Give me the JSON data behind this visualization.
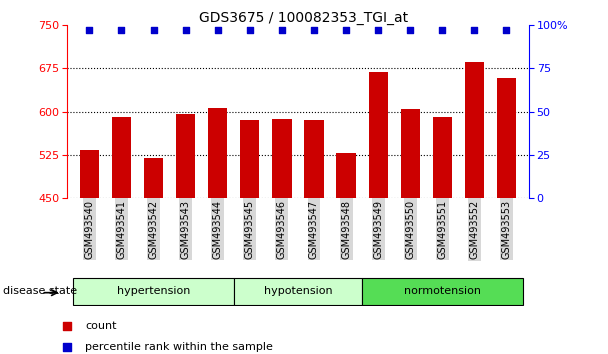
{
  "title": "GDS3675 / 100082353_TGI_at",
  "samples": [
    "GSM493540",
    "GSM493541",
    "GSM493542",
    "GSM493543",
    "GSM493544",
    "GSM493545",
    "GSM493546",
    "GSM493547",
    "GSM493548",
    "GSM493549",
    "GSM493550",
    "GSM493551",
    "GSM493552",
    "GSM493553"
  ],
  "counts": [
    533,
    590,
    520,
    596,
    606,
    585,
    587,
    585,
    528,
    668,
    604,
    590,
    686,
    658
  ],
  "percentiles": [
    97,
    97,
    97,
    97,
    97,
    97,
    97,
    97,
    97,
    97,
    97,
    97,
    97,
    97
  ],
  "groups": [
    {
      "label": "hypertension",
      "start": 0,
      "end": 5,
      "color": "#ccffcc"
    },
    {
      "label": "hypotension",
      "start": 5,
      "end": 9,
      "color": "#ccffcc"
    },
    {
      "label": "normotension",
      "start": 9,
      "end": 14,
      "color": "#55dd55"
    }
  ],
  "ylim_left": [
    450,
    750
  ],
  "ylim_right": [
    0,
    100
  ],
  "yticks_left": [
    450,
    525,
    600,
    675,
    750
  ],
  "yticks_right": [
    0,
    25,
    50,
    75,
    100
  ],
  "bar_color": "#cc0000",
  "dot_color": "#0000cc",
  "grid_color": "#000000",
  "background_color": "#ffffff",
  "legend_count_label": "count",
  "legend_pct_label": "percentile rank within the sample",
  "disease_state_label": "disease state"
}
